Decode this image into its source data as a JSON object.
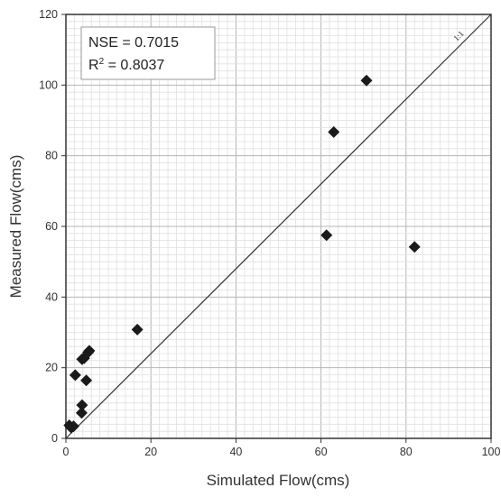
{
  "chart_data": {
    "type": "scatter",
    "title": "",
    "xlabel": "Simulated Flow(cms)",
    "ylabel": "Measured Flow(cms)",
    "xlim": [
      0,
      100
    ],
    "ylim": [
      0,
      120
    ],
    "x_ticks": [
      0,
      20,
      40,
      60,
      80,
      100
    ],
    "y_ticks": [
      0,
      20,
      40,
      60,
      80,
      100,
      120
    ],
    "grid": true,
    "legend": "none",
    "marker": "diamond",
    "marker_color": "#1a1a1a",
    "reference_line": {
      "label": "1:1",
      "from": [
        0,
        0
      ],
      "to": [
        100,
        120
      ]
    },
    "annotation": {
      "nse": "NSE = 0.7015",
      "r2_prefix": "R",
      "r2_sup": "2",
      "r2_suffix": " = 0.8037"
    },
    "series": [
      {
        "x": [
          70.7,
          63.0,
          61.3,
          82.0,
          16.8,
          5.5,
          5.2,
          4.3,
          3.8,
          2.2,
          4.8,
          3.8,
          3.7,
          0.8,
          1.8,
          1.2
        ],
        "y": [
          101.3,
          86.7,
          57.5,
          54.2,
          30.8,
          24.8,
          24.3,
          22.7,
          22.4,
          17.9,
          16.4,
          9.4,
          7.2,
          3.7,
          3.4,
          3.1
        ]
      }
    ]
  }
}
